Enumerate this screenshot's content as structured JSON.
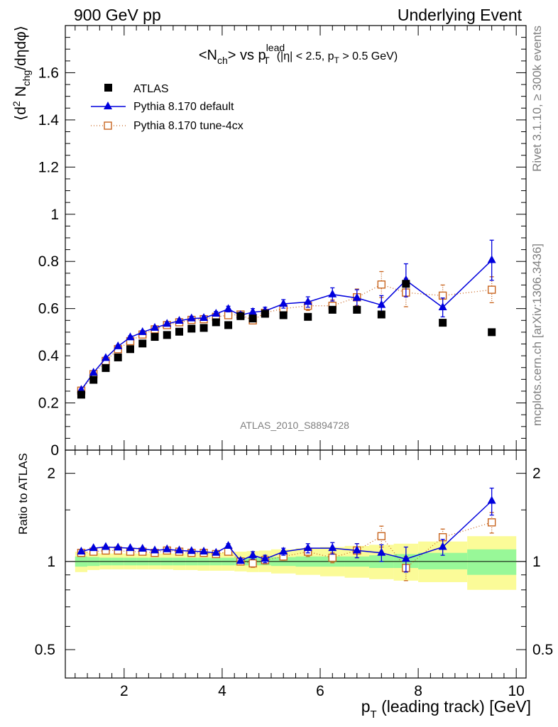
{
  "header": {
    "left": "900 GeV pp",
    "right": "Underlying Event"
  },
  "side_labels": {
    "rivet": "Rivet 3.1.10, ≥ 300k events",
    "mcplots": "mcplots.cern.ch [arXiv:1306.3436]"
  },
  "watermark": "ATLAS_2010_S8894728",
  "title": {
    "main": "<N",
    "ch_sub": "ch",
    "vs": "> vs p",
    "lead_sup": "lead",
    "t_sub": "T",
    "cuts_a": "(|η| < 2.5, p",
    "cuts_t": "T",
    "cuts_b": " > 0.5 GeV)"
  },
  "ylabel_top": {
    "a": "⟨d",
    "sup2": "2",
    "b": " N",
    "sub": "chg",
    "c": "/dηdφ⟩"
  },
  "ylabel_bottom": "Ratio to ATLAS",
  "xlabel": {
    "p": "p",
    "sub": "T",
    "rest": " (leading track) [GeV]"
  },
  "colors": {
    "atlas": "#000000",
    "default": "#0000dd",
    "tune": "#c8641e",
    "band_inner": "#98f898",
    "band_outer": "#fbfb98"
  },
  "chart_data": [
    {
      "type": "scatter",
      "panel": "main",
      "xlim": [
        0.8,
        10.2
      ],
      "ylim": [
        0,
        1.8
      ],
      "yticks": [
        0,
        0.2,
        0.4,
        0.6,
        0.8,
        1,
        1.2,
        1.4,
        1.6
      ],
      "ytick_labels": [
        "0",
        "0.2",
        "0.4",
        "0.6",
        "0.8",
        "1",
        "1.2",
        "1.4",
        "1.6"
      ],
      "legend_position": "top-left",
      "series": [
        {
          "name": "ATLAS",
          "marker": "filled-square",
          "x": [
            1.125,
            1.375,
            1.625,
            1.875,
            2.125,
            2.375,
            2.625,
            2.875,
            3.125,
            3.375,
            3.625,
            3.875,
            4.125,
            4.375,
            4.625,
            4.875,
            5.25,
            5.75,
            6.25,
            6.75,
            7.25,
            7.75,
            8.5,
            9.5
          ],
          "y": [
            0.235,
            0.298,
            0.348,
            0.393,
            0.428,
            0.452,
            0.48,
            0.488,
            0.502,
            0.515,
            0.518,
            0.542,
            0.53,
            0.568,
            0.558,
            0.578,
            0.572,
            0.565,
            0.595,
            0.595,
            0.575,
            0.705,
            0.54,
            0.5
          ]
        },
        {
          "name": "Pythia 8.170 default",
          "marker": "triangle",
          "x": [
            1.125,
            1.375,
            1.625,
            1.875,
            2.125,
            2.375,
            2.625,
            2.875,
            3.125,
            3.375,
            3.625,
            3.875,
            4.125,
            4.375,
            4.625,
            4.875,
            5.25,
            5.75,
            6.25,
            6.75,
            7.25,
            7.75,
            8.5,
            9.5
          ],
          "y": [
            0.255,
            0.328,
            0.39,
            0.44,
            0.478,
            0.5,
            0.518,
            0.535,
            0.548,
            0.558,
            0.56,
            0.578,
            0.598,
            0.572,
            0.585,
            0.59,
            0.62,
            0.628,
            0.66,
            0.645,
            0.615,
            0.72,
            0.605,
            0.805
          ],
          "err": [
            0.005,
            0.005,
            0.006,
            0.006,
            0.007,
            0.007,
            0.007,
            0.008,
            0.008,
            0.009,
            0.009,
            0.01,
            0.012,
            0.013,
            0.015,
            0.016,
            0.018,
            0.022,
            0.028,
            0.035,
            0.04,
            0.07,
            0.04,
            0.085
          ]
        },
        {
          "name": "Pythia 8.170 tune-4cx",
          "marker": "open-square",
          "x": [
            1.125,
            1.375,
            1.625,
            1.875,
            2.125,
            2.375,
            2.625,
            2.875,
            3.125,
            3.375,
            3.625,
            3.875,
            4.125,
            4.375,
            4.625,
            4.875,
            5.25,
            5.75,
            6.25,
            6.75,
            7.25,
            7.75,
            8.5,
            9.5
          ],
          "y": [
            0.252,
            0.322,
            0.378,
            0.428,
            0.462,
            0.49,
            0.512,
            0.53,
            0.542,
            0.552,
            0.555,
            0.565,
            0.572,
            0.575,
            0.55,
            0.582,
            0.6,
            0.612,
            0.612,
            0.648,
            0.702,
            0.668,
            0.655,
            0.68
          ],
          "err": [
            0.005,
            0.005,
            0.006,
            0.006,
            0.007,
            0.007,
            0.007,
            0.008,
            0.008,
            0.009,
            0.009,
            0.01,
            0.011,
            0.012,
            0.014,
            0.015,
            0.018,
            0.02,
            0.025,
            0.035,
            0.055,
            0.06,
            0.045,
            0.055
          ]
        }
      ]
    },
    {
      "type": "scatter",
      "panel": "ratio",
      "ylabel": "Ratio to ATLAS",
      "xlim": [
        0.8,
        10.2
      ],
      "ylim": [
        0.4,
        2.4
      ],
      "log_y": true,
      "xticks": [
        2,
        4,
        6,
        8,
        10
      ],
      "xtick_labels": [
        "2",
        "4",
        "6",
        "8",
        "10"
      ],
      "yticks": [
        0.5,
        1,
        2
      ],
      "ytick_labels": [
        "0.5",
        "1",
        "2"
      ],
      "bands": {
        "x_edges": [
          1.0,
          1.25,
          1.5,
          1.75,
          2.0,
          2.25,
          2.5,
          2.75,
          3.0,
          3.25,
          3.5,
          3.75,
          4.0,
          4.25,
          4.5,
          4.75,
          5.0,
          5.5,
          6.0,
          6.5,
          7.0,
          7.5,
          8.0,
          9.0,
          10.0
        ],
        "inner_lo": [
          0.96,
          0.965,
          0.97,
          0.97,
          0.97,
          0.97,
          0.97,
          0.97,
          0.97,
          0.97,
          0.97,
          0.97,
          0.97,
          0.97,
          0.97,
          0.97,
          0.965,
          0.96,
          0.96,
          0.96,
          0.95,
          0.95,
          0.94,
          0.9
        ],
        "inner_hi": [
          1.04,
          1.035,
          1.03,
          1.03,
          1.03,
          1.03,
          1.03,
          1.03,
          1.03,
          1.03,
          1.03,
          1.03,
          1.03,
          1.03,
          1.03,
          1.03,
          1.035,
          1.04,
          1.04,
          1.04,
          1.05,
          1.06,
          1.07,
          1.1
        ],
        "outer_lo": [
          0.92,
          0.935,
          0.94,
          0.94,
          0.94,
          0.94,
          0.94,
          0.94,
          0.935,
          0.935,
          0.93,
          0.93,
          0.93,
          0.925,
          0.92,
          0.92,
          0.91,
          0.9,
          0.89,
          0.88,
          0.87,
          0.86,
          0.85,
          0.8
        ],
        "outer_hi": [
          1.08,
          1.07,
          1.065,
          1.065,
          1.065,
          1.065,
          1.065,
          1.065,
          1.065,
          1.07,
          1.07,
          1.07,
          1.075,
          1.08,
          1.085,
          1.09,
          1.1,
          1.11,
          1.12,
          1.13,
          1.14,
          1.15,
          1.17,
          1.22
        ]
      },
      "series": [
        {
          "name": "Pythia 8.170 default",
          "marker": "triangle",
          "x": [
            1.125,
            1.375,
            1.625,
            1.875,
            2.125,
            2.375,
            2.625,
            2.875,
            3.125,
            3.375,
            3.625,
            3.875,
            4.125,
            4.375,
            4.625,
            4.875,
            5.25,
            5.75,
            6.25,
            6.75,
            7.25,
            7.75,
            8.5,
            9.5
          ],
          "y": [
            1.08,
            1.11,
            1.12,
            1.115,
            1.11,
            1.105,
            1.09,
            1.1,
            1.09,
            1.085,
            1.08,
            1.07,
            1.13,
            1.005,
            1.05,
            1.02,
            1.08,
            1.11,
            1.11,
            1.09,
            1.07,
            1.02,
            1.12,
            1.61
          ],
          "err": [
            0.01,
            0.01,
            0.01,
            0.01,
            0.01,
            0.01,
            0.01,
            0.01,
            0.01,
            0.01,
            0.01,
            0.01,
            0.02,
            0.02,
            0.03,
            0.03,
            0.03,
            0.04,
            0.05,
            0.06,
            0.07,
            0.1,
            0.07,
            0.17
          ]
        },
        {
          "name": "Pythia 8.170 tune-4cx",
          "marker": "open-square",
          "x": [
            1.125,
            1.375,
            1.625,
            1.875,
            2.125,
            2.375,
            2.625,
            2.875,
            3.125,
            3.375,
            3.625,
            3.875,
            4.125,
            4.375,
            4.625,
            4.875,
            5.25,
            5.75,
            6.25,
            6.75,
            7.25,
            7.75,
            8.5,
            9.5
          ],
          "y": [
            1.07,
            1.08,
            1.09,
            1.09,
            1.08,
            1.08,
            1.07,
            1.09,
            1.08,
            1.07,
            1.07,
            1.06,
            1.08,
            1.0,
            0.985,
            1.01,
            1.04,
            1.08,
            1.03,
            1.09,
            1.22,
            0.95,
            1.21,
            1.36
          ],
          "err": [
            0.01,
            0.01,
            0.01,
            0.01,
            0.01,
            0.01,
            0.01,
            0.01,
            0.01,
            0.01,
            0.01,
            0.01,
            0.02,
            0.02,
            0.03,
            0.03,
            0.03,
            0.04,
            0.04,
            0.06,
            0.1,
            0.09,
            0.08,
            0.11
          ]
        }
      ]
    }
  ]
}
